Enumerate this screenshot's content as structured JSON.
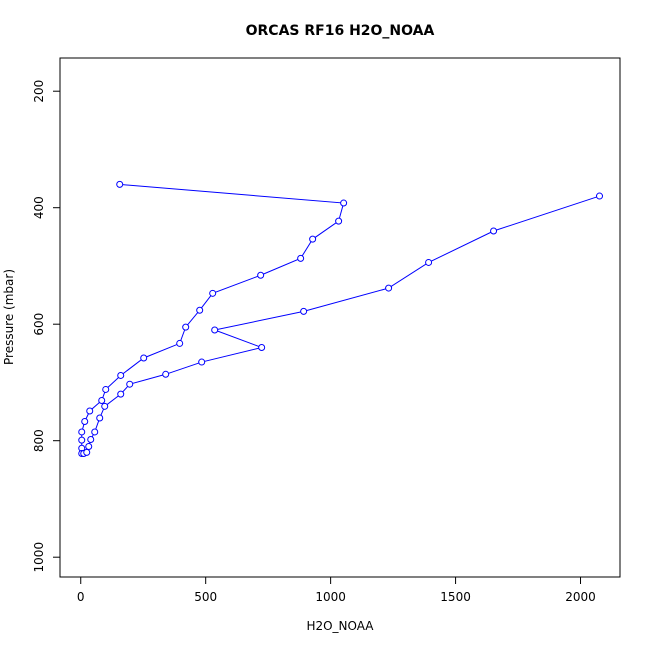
{
  "chart_data": {
    "type": "line",
    "title": "ORCAS RF16 H2O_NOAA",
    "x_label": "H2O_NOAA",
    "y_label": "Pressure (mbar)",
    "xlim": [
      -83,
      2158
    ],
    "ylim": [
      143,
      1034
    ],
    "y_inverted": true,
    "xticks": [
      0,
      500,
      1000,
      1500,
      2000
    ],
    "yticks": [
      200,
      400,
      600,
      800,
      1000
    ],
    "series": [
      {
        "color": "#0000ff",
        "x": [
          156,
          1052,
          1032,
          928,
          880,
          720,
          528,
          476,
          420,
          396,
          252,
          160,
          100,
          84,
          36,
          16,
          4,
          4,
          4,
          4,
          12,
          24,
          32,
          40,
          56,
          76,
          96,
          160,
          196,
          340,
          484,
          724,
          536,
          892,
          1232,
          1392,
          1652,
          2076
        ],
        "values": [
          360,
          392,
          423,
          454,
          487,
          516,
          547,
          576,
          605,
          633,
          658,
          688,
          712,
          731,
          749,
          767,
          785,
          799,
          813,
          822,
          822,
          820,
          810,
          798,
          785,
          761,
          741,
          720,
          703,
          686,
          665,
          640,
          610,
          578,
          538,
          494,
          440,
          380
        ]
      }
    ]
  }
}
